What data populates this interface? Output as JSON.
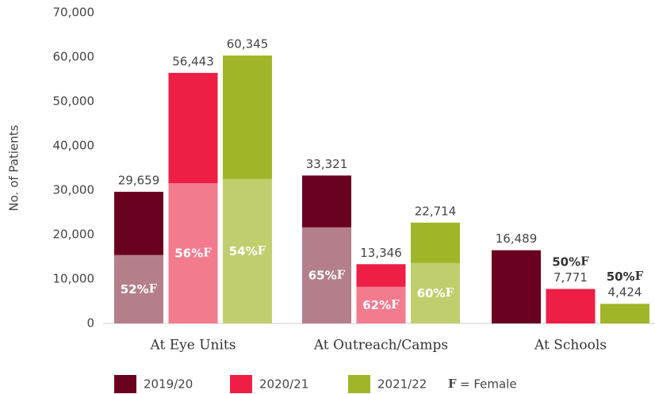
{
  "chart_data": {
    "type": "bar",
    "y_label": "No. of Patients",
    "categories": [
      "At Eye Units",
      "At Outreach/Camps",
      "At Schools"
    ],
    "series": [
      {
        "name": "2019/20",
        "color": "#6a0020",
        "female_color": "#b47e8b",
        "values": [
          29659,
          33321,
          16489
        ],
        "value_labels": [
          "29,659",
          "33,321",
          "16,489"
        ],
        "female_pct": [
          52,
          65,
          null
        ],
        "female_labels": [
          "52%",
          "65%",
          null
        ]
      },
      {
        "name": "2020/21",
        "color": "#ee1e45",
        "female_color": "#f27b8e",
        "values": [
          56443,
          13346,
          7771
        ],
        "value_labels": [
          "56,443",
          "13,346",
          "7,771"
        ],
        "female_pct": [
          56,
          62,
          50
        ],
        "female_labels": [
          "56%",
          "62%",
          "50%"
        ]
      },
      {
        "name": "2021/22",
        "color": "#a0b527",
        "female_color": "#c1ce6e",
        "values": [
          60345,
          22714,
          4424
        ],
        "value_labels": [
          "60,345",
          "22,714",
          "4,424"
        ],
        "female_pct": [
          54,
          60,
          50
        ],
        "female_labels": [
          "54%",
          "60%",
          "50%"
        ]
      }
    ],
    "female_shading": [
      true,
      true,
      false
    ],
    "female_symbol": "F",
    "female_note": "= Female",
    "ylim": [
      0,
      70000
    ],
    "yticks": [
      0,
      {
        "value": 10000,
        "label": "10,000"
      },
      {
        "value": 20000,
        "label": "20,000"
      },
      {
        "value": 30000,
        "label": "30,000"
      },
      {
        "value": 40000,
        "label": "40,000"
      },
      {
        "value": 50000,
        "label": "50,000"
      },
      {
        "value": 60000,
        "label": "60,000"
      },
      {
        "value": 70000,
        "label": "70,000"
      }
    ]
  }
}
